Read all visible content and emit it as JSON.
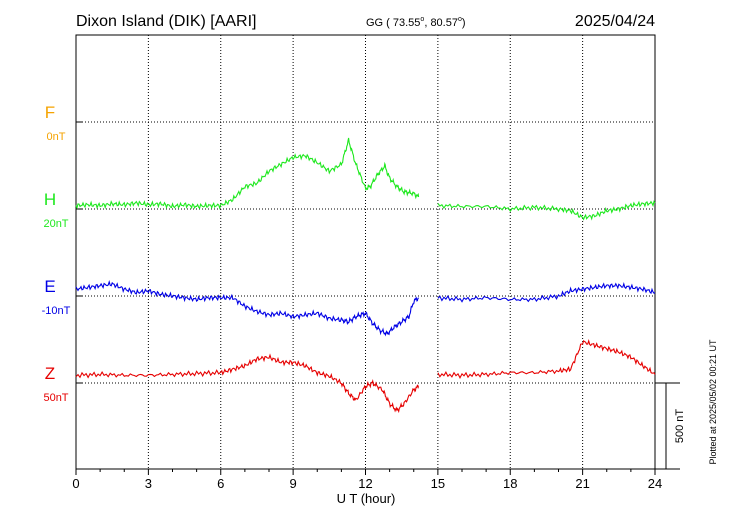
{
  "header": {
    "station": "Dixon Island (DIK)  [AARI]",
    "coords_prefix": "GG ( 73.55",
    "coords_sep": ",  80.57",
    "coords_suffix": ")",
    "degree": "o",
    "date": "2025/04/24"
  },
  "side_note": "Plotted at 2025/05/02 00:21 UT",
  "chart_data": {
    "type": "line",
    "xlabel": "U T (hour)",
    "xlim": [
      0,
      24
    ],
    "xticks": [
      "0",
      "3",
      "6",
      "9",
      "12",
      "15",
      "18",
      "21",
      "24"
    ],
    "scale_bar_label": "500 nT",
    "scale_bar_nT": 500,
    "grid": true,
    "gap_hours": [
      14.2,
      15.0
    ],
    "series": [
      {
        "name": "F",
        "baseline_label": "0nT",
        "color": "#f5a300",
        "x": [],
        "y": []
      },
      {
        "name": "H",
        "baseline_label": "20nT",
        "color": "#1ee81e",
        "x": [
          0,
          0.5,
          1,
          1.5,
          2,
          2.5,
          3,
          3.5,
          4,
          4.5,
          5,
          5.5,
          6,
          6.5,
          7,
          7.5,
          8,
          8.5,
          9,
          9.5,
          10,
          10.5,
          11,
          11.3,
          11.6,
          12,
          12.2,
          12.5,
          12.8,
          13,
          13.3,
          13.6,
          14,
          14.2,
          15,
          16,
          17,
          18,
          19,
          20,
          20.5,
          21,
          21.5,
          22,
          22.5,
          23,
          23.5,
          24
        ],
        "y": [
          20,
          25,
          20,
          30,
          25,
          35,
          25,
          30,
          15,
          25,
          15,
          20,
          20,
          55,
          130,
          150,
          220,
          260,
          300,
          310,
          270,
          220,
          260,
          400,
          260,
          120,
          130,
          200,
          250,
          180,
          130,
          100,
          90,
          70,
          20,
          15,
          15,
          0,
          10,
          0,
          -10,
          -50,
          -40,
          -10,
          0,
          20,
          30,
          35
        ]
      },
      {
        "name": "E",
        "baseline_label": "-10nT",
        "color": "#0000e6",
        "x": [
          0,
          0.5,
          1,
          1.5,
          2,
          2.5,
          3,
          3.5,
          4,
          4.5,
          5,
          5.5,
          6,
          6.5,
          7,
          7.5,
          8,
          8.5,
          9,
          9.5,
          10,
          10.5,
          11,
          11.3,
          11.6,
          12,
          12.3,
          12.6,
          12.9,
          13.2,
          13.5,
          13.8,
          14,
          14.2,
          15,
          16,
          17,
          18,
          19,
          20,
          20.5,
          21,
          21.5,
          22,
          22.5,
          23,
          23.5,
          24
        ],
        "y": [
          40,
          50,
          60,
          70,
          40,
          20,
          30,
          10,
          0,
          -10,
          -20,
          -10,
          -10,
          -10,
          -60,
          -90,
          -110,
          -100,
          -120,
          -110,
          -100,
          -130,
          -140,
          -150,
          -120,
          -100,
          -160,
          -200,
          -220,
          -180,
          -150,
          -120,
          -30,
          -10,
          -10,
          -20,
          -10,
          -20,
          -20,
          0,
          30,
          40,
          50,
          60,
          60,
          50,
          40,
          20
        ]
      },
      {
        "name": "Z",
        "baseline_label": "50nT",
        "color": "#e60000",
        "x": [
          0,
          1,
          2,
          3,
          4,
          5,
          6,
          6.5,
          7,
          7.5,
          8,
          8.5,
          9,
          9.5,
          10,
          10.5,
          11,
          11.3,
          11.6,
          12,
          12.3,
          12.7,
          13,
          13.3,
          13.6,
          14,
          14.2,
          15,
          16,
          17,
          18,
          19,
          20,
          20.5,
          21,
          21.5,
          22,
          22.5,
          23,
          23.5,
          24
        ],
        "y": [
          45,
          50,
          45,
          45,
          50,
          55,
          60,
          80,
          100,
          140,
          150,
          120,
          120,
          100,
          60,
          40,
          0,
          -60,
          -100,
          -20,
          0,
          -40,
          -120,
          -160,
          -120,
          -40,
          -20,
          50,
          45,
          50,
          60,
          60,
          70,
          80,
          240,
          220,
          200,
          180,
          150,
          100,
          50
        ]
      }
    ]
  }
}
